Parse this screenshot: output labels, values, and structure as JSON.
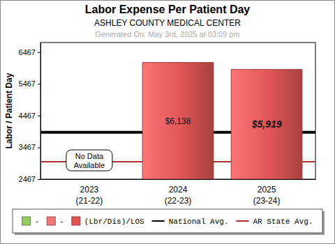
{
  "chart_data": {
    "type": "bar",
    "title": "Labor Expense Per Patient Day",
    "subtitle": "ASHLEY COUNTY MEDICAL CENTER",
    "note": "Generated On: May 3rd, 2025 at 03:09 pm",
    "y_label": "Labor / Patient Day",
    "categories": [
      "2023\n(21-22)",
      "2024\n(22-23)",
      "2025\n(23-24)"
    ],
    "series": [
      {
        "name": "-",
        "color": "#99cc66",
        "values": [
          null,
          null,
          null
        ]
      },
      {
        "name": "-",
        "color": "#ee7777",
        "values": [
          null,
          null,
          null
        ]
      },
      {
        "name": "(Lbr/Dis)/LOS",
        "color": "#e05555",
        "values": [
          null,
          6138,
          5919
        ],
        "value_labels": [
          null,
          "$6,138",
          "$5,919"
        ]
      },
      {
        "name": "National Avg.",
        "type": "line",
        "color": "#000000",
        "values": [
          3940,
          3940,
          3940
        ]
      },
      {
        "name": "AR State Avg.",
        "type": "line",
        "color": "#b03030",
        "values": [
          3016,
          3016,
          3016
        ]
      }
    ],
    "ylim": [
      2467,
      6767
    ],
    "yticks": [
      2467,
      3467,
      4467,
      5467,
      6467
    ],
    "annotation": "No Data\nAvailable",
    "legend": "bottom",
    "data_labels": true,
    "grid": false
  }
}
